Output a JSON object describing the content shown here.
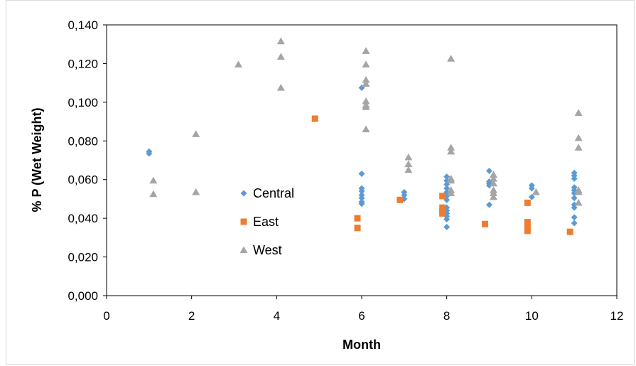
{
  "chart_data": {
    "type": "scatter",
    "title": "",
    "xlabel": "Month",
    "ylabel": "% P (Wet Weight)",
    "xlim": [
      0,
      12
    ],
    "ylim": [
      0,
      0.14
    ],
    "xticks": [
      "0",
      "2",
      "4",
      "6",
      "8",
      "10",
      "12"
    ],
    "xtick_values": [
      0,
      2,
      4,
      6,
      8,
      10,
      12
    ],
    "yticks": [
      "0,000",
      "0,020",
      "0,040",
      "0,060",
      "0,080",
      "0,100",
      "0,120",
      "0,140"
    ],
    "ytick_values": [
      0,
      0.02,
      0.04,
      0.06,
      0.08,
      0.1,
      0.12,
      0.14
    ],
    "grid": false,
    "legend_position": "center-left",
    "series": [
      {
        "name": "Central",
        "marker": "diamond",
        "color": "#5b9bd5",
        "points": [
          [
            1,
            0.0745
          ],
          [
            1,
            0.0735
          ],
          [
            6,
            0.1075
          ],
          [
            6,
            0.063
          ],
          [
            6,
            0.0555
          ],
          [
            6,
            0.054
          ],
          [
            6,
            0.052
          ],
          [
            6,
            0.0505
          ],
          [
            6,
            0.0485
          ],
          [
            6,
            0.0475
          ],
          [
            7,
            0.0535
          ],
          [
            7,
            0.052
          ],
          [
            7,
            0.05
          ],
          [
            8,
            0.0615
          ],
          [
            8,
            0.0595
          ],
          [
            8,
            0.0575
          ],
          [
            8,
            0.0555
          ],
          [
            8,
            0.0535
          ],
          [
            8,
            0.0515
          ],
          [
            8,
            0.0495
          ],
          [
            8,
            0.0455
          ],
          [
            8,
            0.044
          ],
          [
            8,
            0.0425
          ],
          [
            8,
            0.041
          ],
          [
            8,
            0.0395
          ],
          [
            8,
            0.0355
          ],
          [
            9,
            0.0645
          ],
          [
            9,
            0.059
          ],
          [
            9,
            0.058
          ],
          [
            9,
            0.057
          ],
          [
            9,
            0.047
          ],
          [
            10,
            0.057
          ],
          [
            10,
            0.0555
          ],
          [
            10,
            0.051
          ],
          [
            11,
            0.0635
          ],
          [
            11,
            0.062
          ],
          [
            11,
            0.0605
          ],
          [
            11,
            0.056
          ],
          [
            11,
            0.0545
          ],
          [
            11,
            0.053
          ],
          [
            11,
            0.0505
          ],
          [
            11,
            0.047
          ],
          [
            11,
            0.0455
          ],
          [
            11,
            0.0405
          ],
          [
            11,
            0.0375
          ]
        ]
      },
      {
        "name": "East",
        "marker": "square",
        "color": "#ed7d31",
        "points": [
          [
            4.9,
            0.0915
          ],
          [
            5.9,
            0.04
          ],
          [
            5.9,
            0.035
          ],
          [
            6.9,
            0.0495
          ],
          [
            7.9,
            0.0515
          ],
          [
            7.9,
            0.0455
          ],
          [
            7.9,
            0.0435
          ],
          [
            7.9,
            0.0425
          ],
          [
            8.9,
            0.037
          ],
          [
            9.9,
            0.048
          ],
          [
            9.9,
            0.038
          ],
          [
            9.9,
            0.0355
          ],
          [
            9.9,
            0.0335
          ],
          [
            10.9,
            0.033
          ]
        ]
      },
      {
        "name": "West",
        "marker": "triangle",
        "color": "#a5a5a5",
        "points": [
          [
            1.1,
            0.0595
          ],
          [
            1.1,
            0.0525
          ],
          [
            2.1,
            0.0835
          ],
          [
            2.1,
            0.0535
          ],
          [
            3.1,
            0.1195
          ],
          [
            4.1,
            0.1315
          ],
          [
            4.1,
            0.1235
          ],
          [
            4.1,
            0.1075
          ],
          [
            6.1,
            0.1265
          ],
          [
            6.1,
            0.1195
          ],
          [
            6.1,
            0.1115
          ],
          [
            6.1,
            0.1095
          ],
          [
            6.1,
            0.1005
          ],
          [
            6.1,
            0.0985
          ],
          [
            6.1,
            0.0975
          ],
          [
            6.1,
            0.086
          ],
          [
            7.1,
            0.0715
          ],
          [
            7.1,
            0.068
          ],
          [
            7.1,
            0.065
          ],
          [
            8.1,
            0.1225
          ],
          [
            8.1,
            0.0765
          ],
          [
            8.1,
            0.0745
          ],
          [
            8.1,
            0.0605
          ],
          [
            8.1,
            0.0595
          ],
          [
            8.1,
            0.0545
          ],
          [
            8.1,
            0.053
          ],
          [
            9.1,
            0.0625
          ],
          [
            9.1,
            0.0605
          ],
          [
            9.1,
            0.058
          ],
          [
            9.1,
            0.0545
          ],
          [
            9.1,
            0.053
          ],
          [
            9.1,
            0.051
          ],
          [
            10.1,
            0.0535
          ],
          [
            11.1,
            0.0945
          ],
          [
            11.1,
            0.0815
          ],
          [
            11.1,
            0.0765
          ],
          [
            11.1,
            0.0545
          ],
          [
            11.1,
            0.0535
          ],
          [
            11.1,
            0.048
          ]
        ]
      }
    ]
  }
}
